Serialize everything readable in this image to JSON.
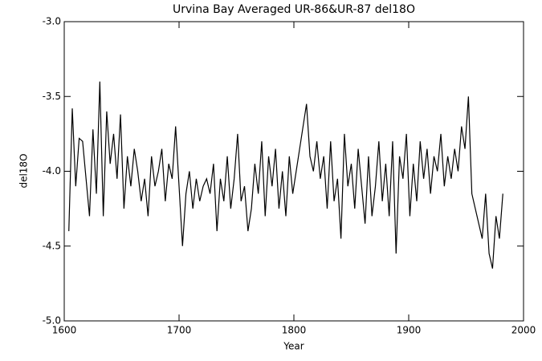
{
  "chart_data": {
    "type": "line",
    "title": "Urvina Bay Averaged UR-86&UR-87 del18O",
    "x_label": "Year",
    "y_label": "del18O",
    "xlim": [
      1600,
      2000
    ],
    "xticks": [
      1600,
      1700,
      1800,
      1900,
      2000
    ],
    "ylim": [
      -5,
      -3
    ],
    "yticks": [
      {
        "value": -5,
        "label": "-5.0"
      },
      {
        "value": -4.5,
        "label": "-4.5"
      },
      {
        "value": -4,
        "label": "-4.0"
      },
      {
        "value": -3.5,
        "label": "-3.5"
      },
      {
        "value": -3,
        "label": "-3.0"
      }
    ],
    "color": "#000000",
    "x": [
      1604,
      1607,
      1610,
      1613,
      1616,
      1619,
      1622,
      1625,
      1628,
      1631,
      1634,
      1637,
      1640,
      1643,
      1646,
      1649,
      1652,
      1655,
      1658,
      1661,
      1664,
      1667,
      1670,
      1673,
      1676,
      1679,
      1682,
      1685,
      1688,
      1691,
      1694,
      1697,
      1700,
      1703,
      1706,
      1709,
      1712,
      1715,
      1718,
      1721,
      1724,
      1727,
      1730,
      1733,
      1736,
      1739,
      1742,
      1745,
      1748,
      1751,
      1754,
      1757,
      1760,
      1763,
      1766,
      1769,
      1772,
      1775,
      1778,
      1781,
      1784,
      1787,
      1790,
      1793,
      1796,
      1799,
      1802,
      1805,
      1808,
      1811,
      1814,
      1817,
      1820,
      1823,
      1826,
      1829,
      1832,
      1835,
      1838,
      1841,
      1844,
      1847,
      1850,
      1853,
      1856,
      1859,
      1862,
      1865,
      1868,
      1871,
      1874,
      1877,
      1880,
      1883,
      1886,
      1889,
      1892,
      1895,
      1898,
      1901,
      1904,
      1907,
      1910,
      1913,
      1916,
      1919,
      1922,
      1925,
      1928,
      1931,
      1934,
      1937,
      1940,
      1943,
      1946,
      1949,
      1952,
      1955,
      1958,
      1961,
      1964,
      1967,
      1970,
      1973,
      1976,
      1979,
      1982
    ],
    "values": [
      -4.4,
      -3.58,
      -4.1,
      -3.78,
      -3.8,
      -4.05,
      -4.3,
      -3.72,
      -4.15,
      -3.4,
      -4.3,
      -3.6,
      -3.95,
      -3.75,
      -4.05,
      -3.62,
      -4.25,
      -3.9,
      -4.1,
      -3.85,
      -4.0,
      -4.2,
      -4.05,
      -4.3,
      -3.9,
      -4.1,
      -4.0,
      -3.85,
      -4.2,
      -3.95,
      -4.05,
      -3.7,
      -4.1,
      -4.5,
      -4.15,
      -4.0,
      -4.25,
      -4.05,
      -4.2,
      -4.1,
      -4.05,
      -4.15,
      -3.95,
      -4.4,
      -4.05,
      -4.2,
      -3.9,
      -4.25,
      -4.05,
      -3.75,
      -4.2,
      -4.1,
      -4.4,
      -4.25,
      -3.95,
      -4.15,
      -3.8,
      -4.3,
      -3.9,
      -4.1,
      -3.85,
      -4.25,
      -4.0,
      -4.3,
      -3.9,
      -4.15,
      -4.0,
      -3.85,
      -3.7,
      -3.55,
      -3.9,
      -4.0,
      -3.8,
      -4.05,
      -3.9,
      -4.25,
      -3.8,
      -4.2,
      -4.05,
      -4.45,
      -3.75,
      -4.1,
      -3.95,
      -4.25,
      -3.85,
      -4.1,
      -4.35,
      -3.9,
      -4.3,
      -4.1,
      -3.8,
      -4.2,
      -3.95,
      -4.3,
      -3.8,
      -4.55,
      -3.9,
      -4.05,
      -3.75,
      -4.3,
      -3.95,
      -4.2,
      -3.8,
      -4.05,
      -3.85,
      -4.15,
      -3.9,
      -4.0,
      -3.75,
      -4.1,
      -3.9,
      -4.05,
      -3.85,
      -4.0,
      -3.7,
      -3.85,
      -3.5,
      -4.15,
      -4.25,
      -4.35,
      -4.45,
      -4.15,
      -4.55,
      -4.65,
      -4.3,
      -4.45,
      -4.15
    ]
  }
}
